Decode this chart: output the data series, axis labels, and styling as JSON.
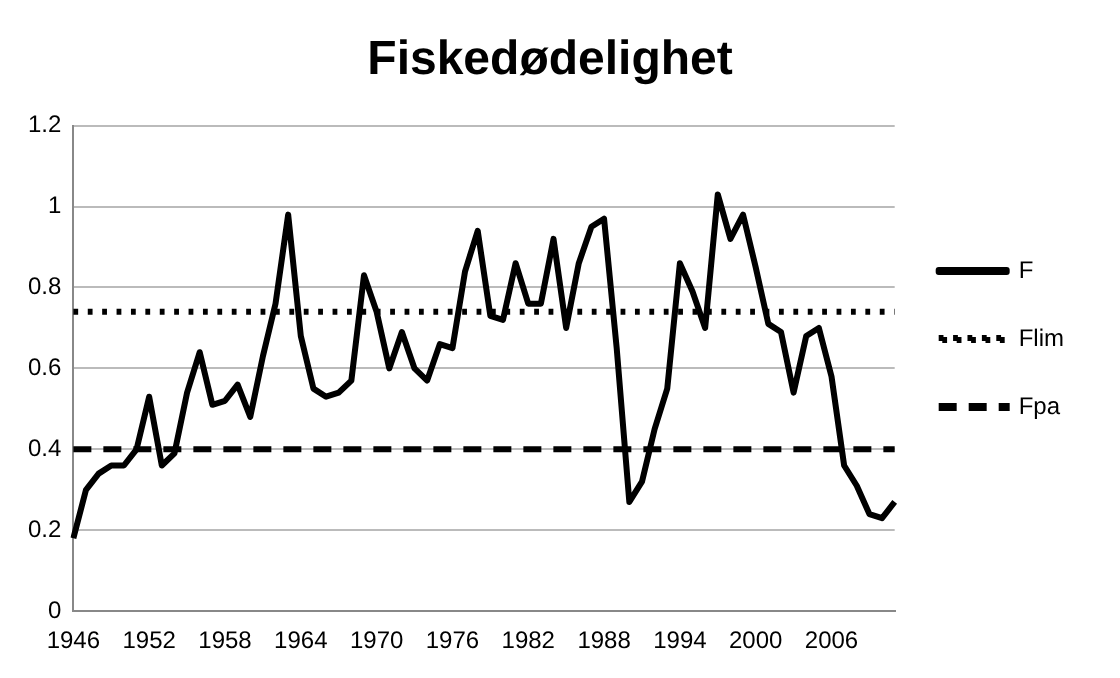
{
  "chart_data": {
    "type": "line",
    "title": "Fiskedødelighet",
    "categories": [
      "1946",
      null,
      null,
      null,
      null,
      null,
      "1952",
      null,
      null,
      null,
      null,
      null,
      "1958",
      null,
      null,
      null,
      null,
      null,
      "1964",
      null,
      null,
      null,
      null,
      null,
      "1970",
      null,
      null,
      null,
      null,
      null,
      "1976",
      null,
      null,
      null,
      null,
      null,
      "1982",
      null,
      null,
      null,
      null,
      null,
      "1988",
      null,
      null,
      null,
      null,
      null,
      "1994",
      null,
      null,
      null,
      null,
      null,
      "2000",
      null,
      null,
      null,
      null,
      null,
      "2006",
      null,
      null,
      null,
      null,
      null
    ],
    "series": [
      {
        "name": "F",
        "color": "#000000",
        "values": [
          0.18,
          0.3,
          0.34,
          0.36,
          0.36,
          0.4,
          0.53,
          0.36,
          0.39,
          0.54,
          0.64,
          0.51,
          0.52,
          0.56,
          0.48,
          0.63,
          0.76,
          0.98,
          0.68,
          0.55,
          0.53,
          0.54,
          0.57,
          0.83,
          0.74,
          0.6,
          0.69,
          0.6,
          0.57,
          0.66,
          0.65,
          0.84,
          0.94,
          0.73,
          0.72,
          0.86,
          0.76,
          0.76,
          0.92,
          0.7,
          0.86,
          0.95,
          0.97,
          0.65,
          0.27,
          0.32,
          0.45,
          0.55,
          0.86,
          0.79,
          0.7,
          1.03,
          0.92,
          0.98,
          0.85,
          0.71,
          0.69,
          0.54,
          0.68,
          0.7,
          0.58,
          0.36,
          0.31,
          0.24,
          0.23,
          0.27
        ]
      }
    ],
    "ref_lines": [
      {
        "axis": "y",
        "value": 0.74,
        "label": "Flim",
        "color": "#000000",
        "line_style": "dotted"
      },
      {
        "axis": "y",
        "value": 0.4,
        "label": "Fpa",
        "color": "#000000",
        "line_style": "dashed"
      }
    ],
    "ylim": [
      0,
      1.2
    ],
    "yticks": [
      0,
      0.2,
      0.4,
      0.6,
      0.8,
      1,
      1.2
    ],
    "grid": "y",
    "legend": "right",
    "line_style": "solid",
    "marker": "none"
  }
}
